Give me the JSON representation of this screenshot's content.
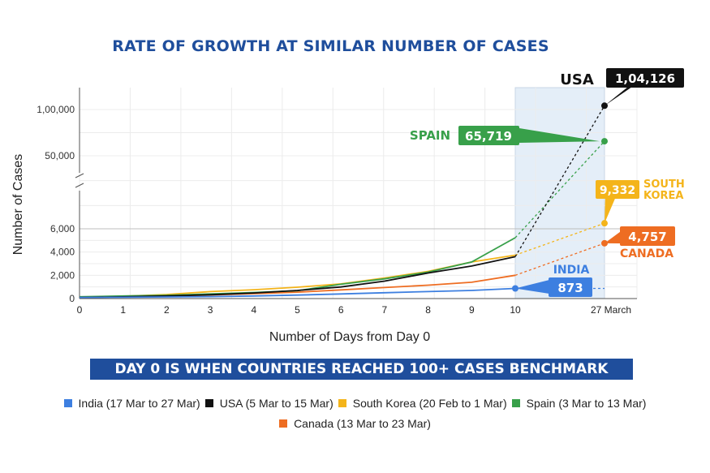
{
  "title": "RATE OF GROWTH AT SIMILAR NUMBER OF CASES",
  "banner": "DAY 0 IS WHEN COUNTRIES REACHED 100+ CASES BENCHMARK",
  "chart_data": {
    "type": "line",
    "xlabel": "Number of Days from Day 0",
    "ylabel": "Number of Cases",
    "x_ticks": [
      "0",
      "1",
      "2",
      "3",
      "4",
      "5",
      "6",
      "7",
      "8",
      "9",
      "10",
      "27 March"
    ],
    "y_ticks": [
      "0",
      "2,000",
      "4,000",
      "6,000",
      "50,000",
      "1,00,000"
    ],
    "y_scale": "broken (linear 0–7,000 below break, compressed 7,000–1,04,126 above)",
    "grid": true,
    "highlight_region": [
      "10",
      "27 March"
    ],
    "legend_position": "bottom",
    "series": [
      {
        "name": "India (17 Mar to 27 Mar)",
        "color": "#3d7fe0",
        "x": [
          0,
          1,
          2,
          3,
          4,
          5,
          6,
          7,
          8,
          9,
          10
        ],
        "y": [
          100,
          115,
          140,
          170,
          220,
          300,
          400,
          500,
          600,
          700,
          873
        ],
        "final": 873,
        "final_label": "873",
        "callout": "INDIA"
      },
      {
        "name": "USA (5 Mar to 15 Mar)",
        "color": "#111111",
        "x": [
          0,
          1,
          2,
          3,
          4,
          5,
          6,
          7,
          8,
          9,
          10
        ],
        "y": [
          100,
          150,
          220,
          330,
          480,
          700,
          1000,
          1500,
          2200,
          2800,
          3600
        ],
        "final": 104126,
        "final_label": "1,04,126",
        "callout": "USA"
      },
      {
        "name": "South Korea (20 Feb to 1 Mar)",
        "color": "#f4b41a",
        "x": [
          0,
          1,
          2,
          3,
          4,
          5,
          6,
          7,
          8,
          9,
          10
        ],
        "y": [
          104,
          204,
          346,
          602,
          763,
          977,
          1261,
          1766,
          2337,
          3150,
          3736
        ],
        "final": 9332,
        "final_label": "9,332",
        "callout": "SOUTH KOREA"
      },
      {
        "name": "Spain (3 Mar to 13 Mar)",
        "color": "#38a04a",
        "x": [
          0,
          1,
          2,
          3,
          4,
          5,
          6,
          7,
          8,
          9,
          10
        ],
        "y": [
          151,
          221,
          282,
          401,
          525,
          674,
          1231,
          1695,
          2277,
          3146,
          5232
        ],
        "final": 65719,
        "final_label": "65,719",
        "callout": "SPAIN"
      },
      {
        "name": "Canada (13 Mar to 23 Mar)",
        "color": "#ee6d22",
        "x": [
          0,
          1,
          2,
          3,
          4,
          5,
          6,
          7,
          8,
          9,
          10
        ],
        "y": [
          100,
          150,
          220,
          310,
          420,
          550,
          750,
          950,
          1150,
          1400,
          2000
        ],
        "final": 4757,
        "final_label": "4,757",
        "callout": "CANADA"
      }
    ]
  }
}
